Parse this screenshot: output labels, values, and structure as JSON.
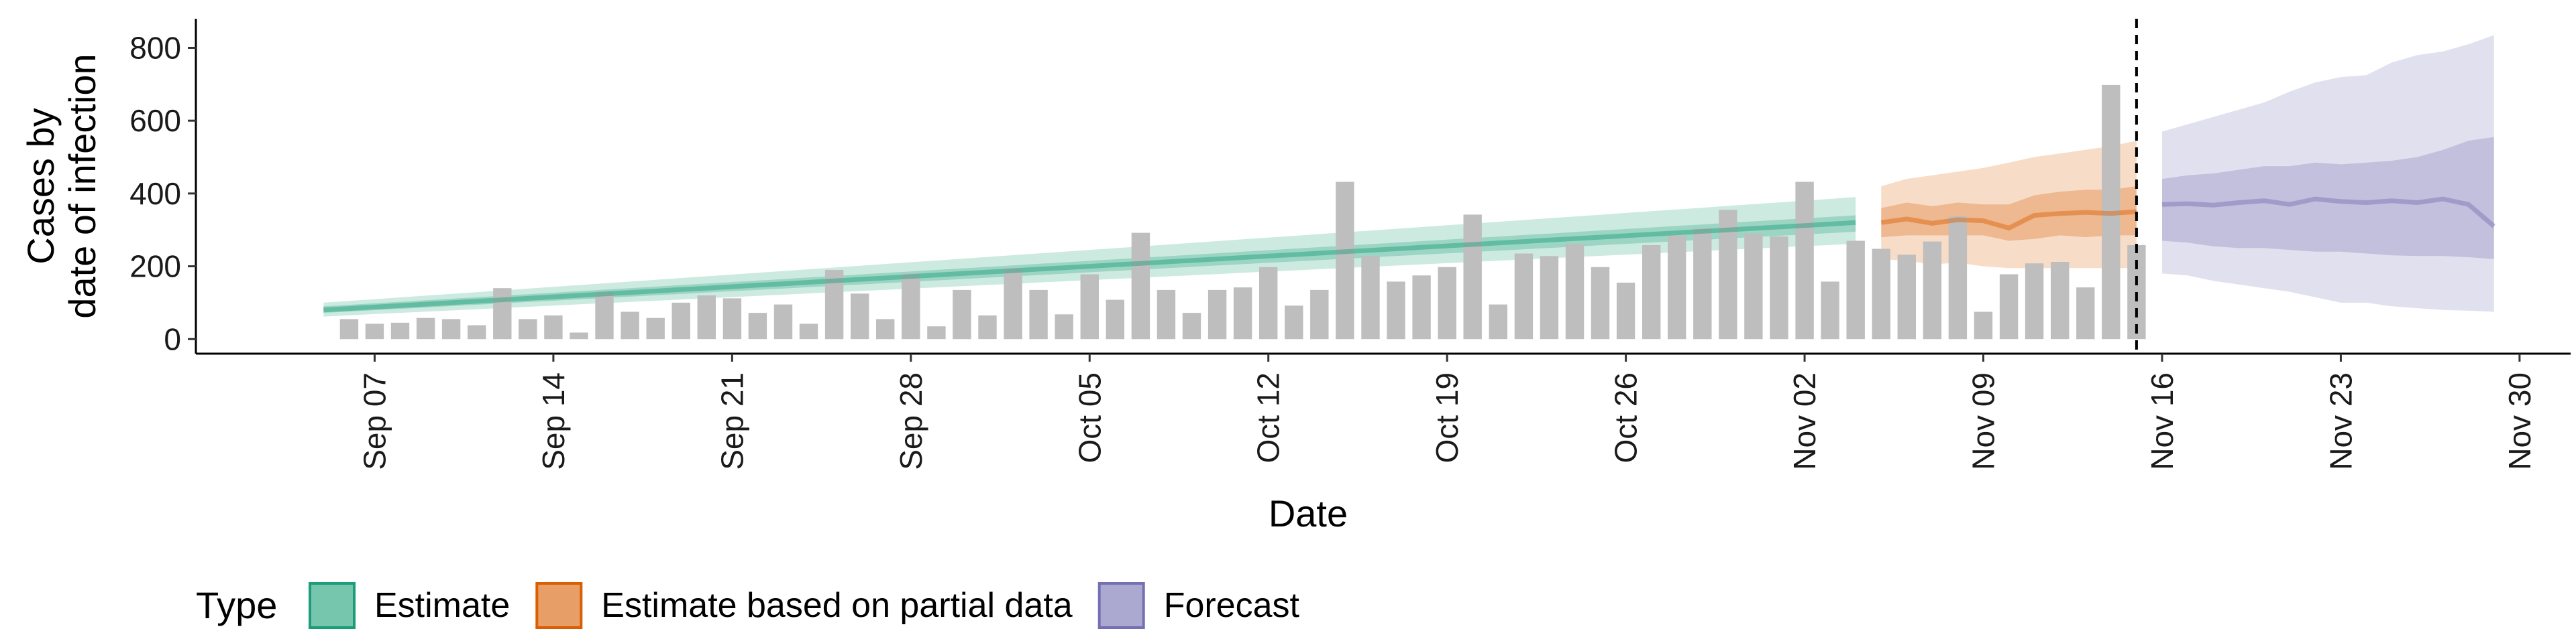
{
  "chart_data": {
    "type": "bar",
    "xlabel": "Date",
    "ylabel_lines": [
      "Cases by",
      "date of infection"
    ],
    "x_range": [
      "2020-08-31",
      "2020-12-02"
    ],
    "ylim": [
      -40,
      880
    ],
    "y_ticks": [
      0,
      200,
      400,
      600,
      800
    ],
    "x_tick_labels": [
      {
        "date": "2020-09-07",
        "label": "Sep 07"
      },
      {
        "date": "2020-09-14",
        "label": "Sep 14"
      },
      {
        "date": "2020-09-21",
        "label": "Sep 21"
      },
      {
        "date": "2020-09-28",
        "label": "Sep 28"
      },
      {
        "date": "2020-10-05",
        "label": "Oct 05"
      },
      {
        "date": "2020-10-12",
        "label": "Oct 12"
      },
      {
        "date": "2020-10-19",
        "label": "Oct 19"
      },
      {
        "date": "2020-10-26",
        "label": "Oct 26"
      },
      {
        "date": "2020-11-02",
        "label": "Nov 02"
      },
      {
        "date": "2020-11-09",
        "label": "Nov 09"
      },
      {
        "date": "2020-11-16",
        "label": "Nov 16"
      },
      {
        "date": "2020-11-23",
        "label": "Nov 23"
      },
      {
        "date": "2020-11-30",
        "label": "Nov 30"
      }
    ],
    "vline_date": "2020-11-15",
    "grid": false,
    "bar_color": "#BEBEBE",
    "bars": {
      "start_date": "2020-09-06",
      "values": [
        55,
        42,
        45,
        58,
        55,
        38,
        140,
        55,
        65,
        18,
        130,
        75,
        58,
        100,
        120,
        112,
        72,
        95,
        42,
        190,
        125,
        55,
        180,
        35,
        135,
        65,
        195,
        135,
        68,
        178,
        108,
        292,
        135,
        72,
        135,
        142,
        198,
        92,
        135,
        432,
        228,
        158,
        175,
        198,
        342,
        95,
        235,
        228,
        262,
        198,
        155,
        258,
        285,
        305,
        355,
        290,
        282,
        432,
        158,
        270,
        248,
        232,
        268,
        338,
        75,
        178,
        208,
        212,
        142,
        698,
        258
      ]
    },
    "legend_title": "Type",
    "legend_position": "bottom",
    "series": [
      {
        "name": "Estimate",
        "color": "#1B9E77",
        "start_date": "2020-09-05",
        "end_date": "2020-11-04",
        "median": [
          80,
          320
        ],
        "inner": [
          [
            72,
            90
          ],
          [
            295,
            340
          ]
        ],
        "outer": [
          [
            62,
            100
          ],
          [
            262,
            390
          ]
        ]
      },
      {
        "name": "Estimate based on partial data",
        "color": "#D95F02",
        "start_date": "2020-11-05",
        "end_date": "2020-11-15",
        "median": [
          [
            320,
            330,
            318,
            328,
            325,
            305,
            340,
            345,
            348,
            345,
            350
          ]
        ],
        "inner": [
          [
            280,
            360
          ],
          [
            285,
            375
          ],
          [
            285,
            365
          ],
          [
            285,
            375
          ],
          [
            285,
            370
          ],
          [
            270,
            370
          ],
          [
            275,
            395
          ],
          [
            285,
            405
          ],
          [
            280,
            410
          ],
          [
            285,
            410
          ],
          [
            285,
            420
          ]
        ],
        "outer": [
          [
            220,
            420
          ],
          [
            215,
            440
          ],
          [
            205,
            450
          ],
          [
            210,
            460
          ],
          [
            200,
            470
          ],
          [
            195,
            485
          ],
          [
            195,
            500
          ],
          [
            195,
            510
          ],
          [
            195,
            520
          ],
          [
            195,
            530
          ],
          [
            195,
            545
          ]
        ]
      },
      {
        "name": "Forecast",
        "color": "#7570B3",
        "start_date": "2020-11-16",
        "end_date": "2020-11-29",
        "median": [
          [
            370,
            372,
            368,
            375,
            380,
            370,
            385,
            378,
            375,
            380,
            375,
            385,
            370,
            310
          ]
        ],
        "inner": [
          [
            270,
            440
          ],
          [
            265,
            450
          ],
          [
            255,
            455
          ],
          [
            250,
            465
          ],
          [
            250,
            475
          ],
          [
            245,
            475
          ],
          [
            240,
            485
          ],
          [
            240,
            480
          ],
          [
            235,
            485
          ],
          [
            230,
            490
          ],
          [
            228,
            500
          ],
          [
            228,
            520
          ],
          [
            225,
            545
          ],
          [
            220,
            555
          ]
        ],
        "outer": [
          [
            180,
            570
          ],
          [
            175,
            590
          ],
          [
            160,
            610
          ],
          [
            150,
            630
          ],
          [
            140,
            650
          ],
          [
            130,
            680
          ],
          [
            115,
            705
          ],
          [
            100,
            720
          ],
          [
            100,
            725
          ],
          [
            90,
            760
          ],
          [
            85,
            780
          ],
          [
            80,
            790
          ],
          [
            78,
            810
          ],
          [
            75,
            835
          ]
        ]
      }
    ]
  }
}
